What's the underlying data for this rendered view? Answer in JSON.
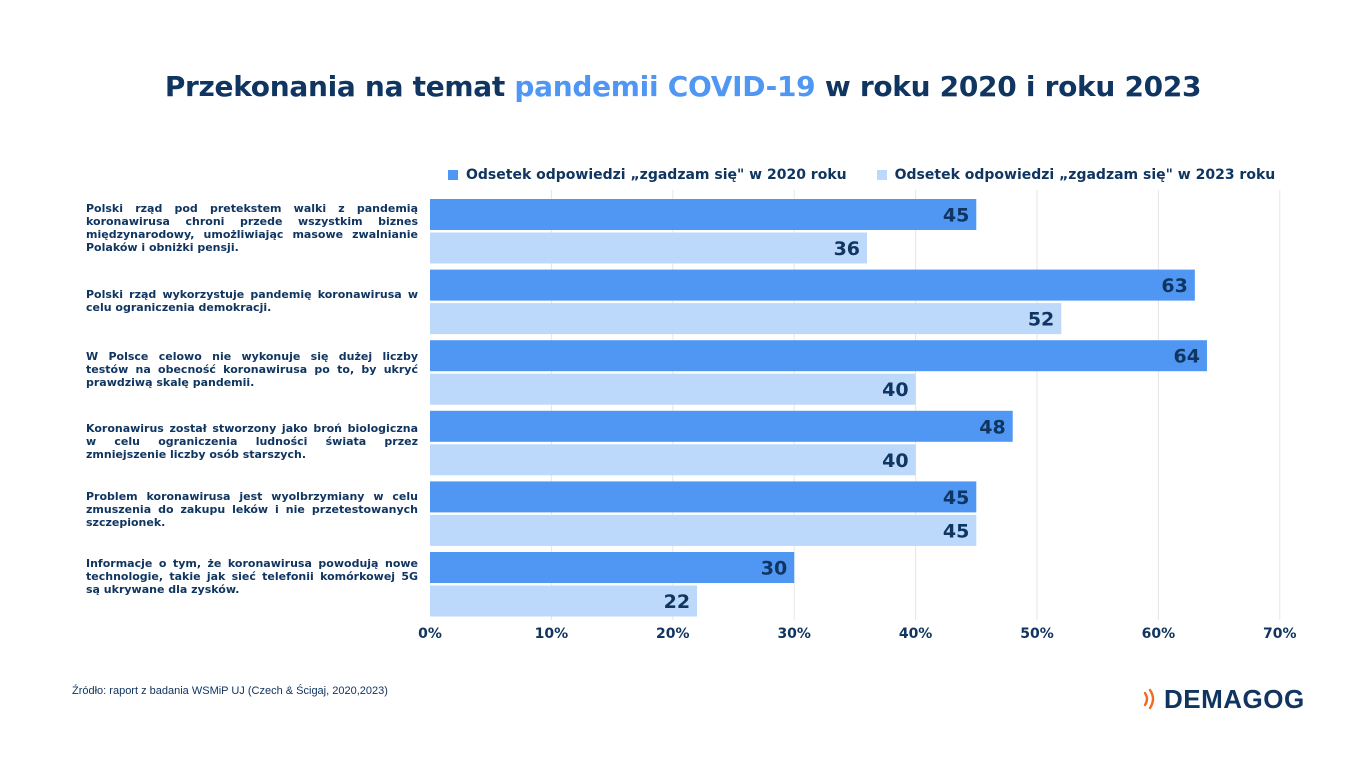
{
  "header": {
    "title_part1": "Przekonania na temat ",
    "title_highlight": "pandemii COVID-19",
    "title_part2": " w roku 2020 i roku 2023"
  },
  "colors": {
    "series_2020": "#4f97f2",
    "series_2023": "#bcd8fb",
    "text": "#0f3560",
    "grid": "#e4e6ea",
    "logo_accent": "#f26a21"
  },
  "chart_data": {
    "type": "bar",
    "orientation": "horizontal",
    "title": "Przekonania na temat pandemii COVID-19 w roku 2020 i roku 2023",
    "categories": [
      "Polski rząd pod pretekstem walki z pandemią koronawirusa chroni przede wszystkim biznes międzynarodowy, umożliwiając masowe zwalnianie Polaków i obniżki pensji.",
      "Polski rząd wykorzystuje pandemię koronawirusa w celu ograniczenia demokracji.",
      "W Polsce celowo nie wykonuje się dużej liczby testów na obecność koronawirusa po to, by ukryć prawdziwą skalę pandemii.",
      "Koronawirus został stworzony jako broń biologiczna w celu ograniczenia ludności świata przez zmniejszenie liczby osób starszych.",
      "Problem koronawirusa jest wyolbrzymiany w celu zmuszenia do zakupu leków i nie przetestowanych szczepionek.",
      "Informacje o tym, że koronawirusa powodują nowe technologie, takie jak sieć telefonii komórkowej 5G są ukrywane dla zysków."
    ],
    "series": [
      {
        "name": "Odsetek odpowiedzi „zgadzam się\" w 2020 roku",
        "values": [
          45,
          63,
          64,
          48,
          45,
          30
        ]
      },
      {
        "name": "Odsetek odpowiedzi „zgadzam się\" w 2023 roku",
        "values": [
          36,
          52,
          40,
          40,
          45,
          22
        ]
      }
    ],
    "xlim": [
      0,
      70
    ],
    "xticks": [
      0,
      10,
      20,
      30,
      40,
      50,
      60,
      70
    ],
    "xtick_labels": [
      "0%",
      "10%",
      "20%",
      "30%",
      "40%",
      "50%",
      "60%",
      "70%"
    ],
    "grid": true,
    "legend_position": "top"
  },
  "footer": {
    "source": "Źródło: raport z badania WSMiP UJ (Czech & Ścigaj, 2020,2023)",
    "logo_text": "DEMAGOG"
  }
}
